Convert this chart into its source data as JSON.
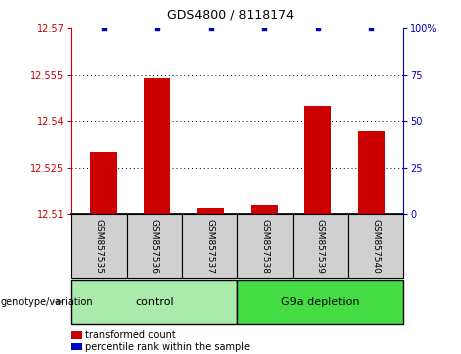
{
  "title": "GDS4800 / 8118174",
  "samples": [
    "GSM857535",
    "GSM857536",
    "GSM857537",
    "GSM857538",
    "GSM857539",
    "GSM857540"
  ],
  "bar_values": [
    12.53,
    12.554,
    12.512,
    12.513,
    12.545,
    12.537
  ],
  "percentile_values": [
    100,
    100,
    100,
    100,
    100,
    100
  ],
  "ylim_left": [
    12.51,
    12.57
  ],
  "ylim_right": [
    0,
    100
  ],
  "yticks_left": [
    12.51,
    12.525,
    12.54,
    12.555,
    12.57
  ],
  "yticks_right": [
    0,
    25,
    50,
    75,
    100
  ],
  "ytick_labels_left": [
    "12.51",
    "12.525",
    "12.54",
    "12.555",
    "12.57"
  ],
  "ytick_labels_right": [
    "0",
    "25",
    "50",
    "75",
    "100%"
  ],
  "bar_color": "#cc0000",
  "dot_color": "#0000cc",
  "bar_width": 0.5,
  "groups": [
    {
      "label": "control",
      "indices": [
        0,
        1,
        2
      ],
      "color": "#aaeaaa"
    },
    {
      "label": "G9a depletion",
      "indices": [
        3,
        4,
        5
      ],
      "color": "#44dd44"
    }
  ],
  "group_label_prefix": "genotype/variation",
  "legend_items": [
    {
      "label": "transformed count",
      "color": "#cc0000"
    },
    {
      "label": "percentile rank within the sample",
      "color": "#0000cc"
    }
  ],
  "grid_color": "black",
  "plot_bg": "#ffffff",
  "sample_box_color": "#d0d0d0",
  "title_fontsize": 9,
  "tick_fontsize": 7,
  "sample_fontsize": 6.5,
  "group_fontsize": 8,
  "legend_fontsize": 7,
  "genotype_fontsize": 7
}
